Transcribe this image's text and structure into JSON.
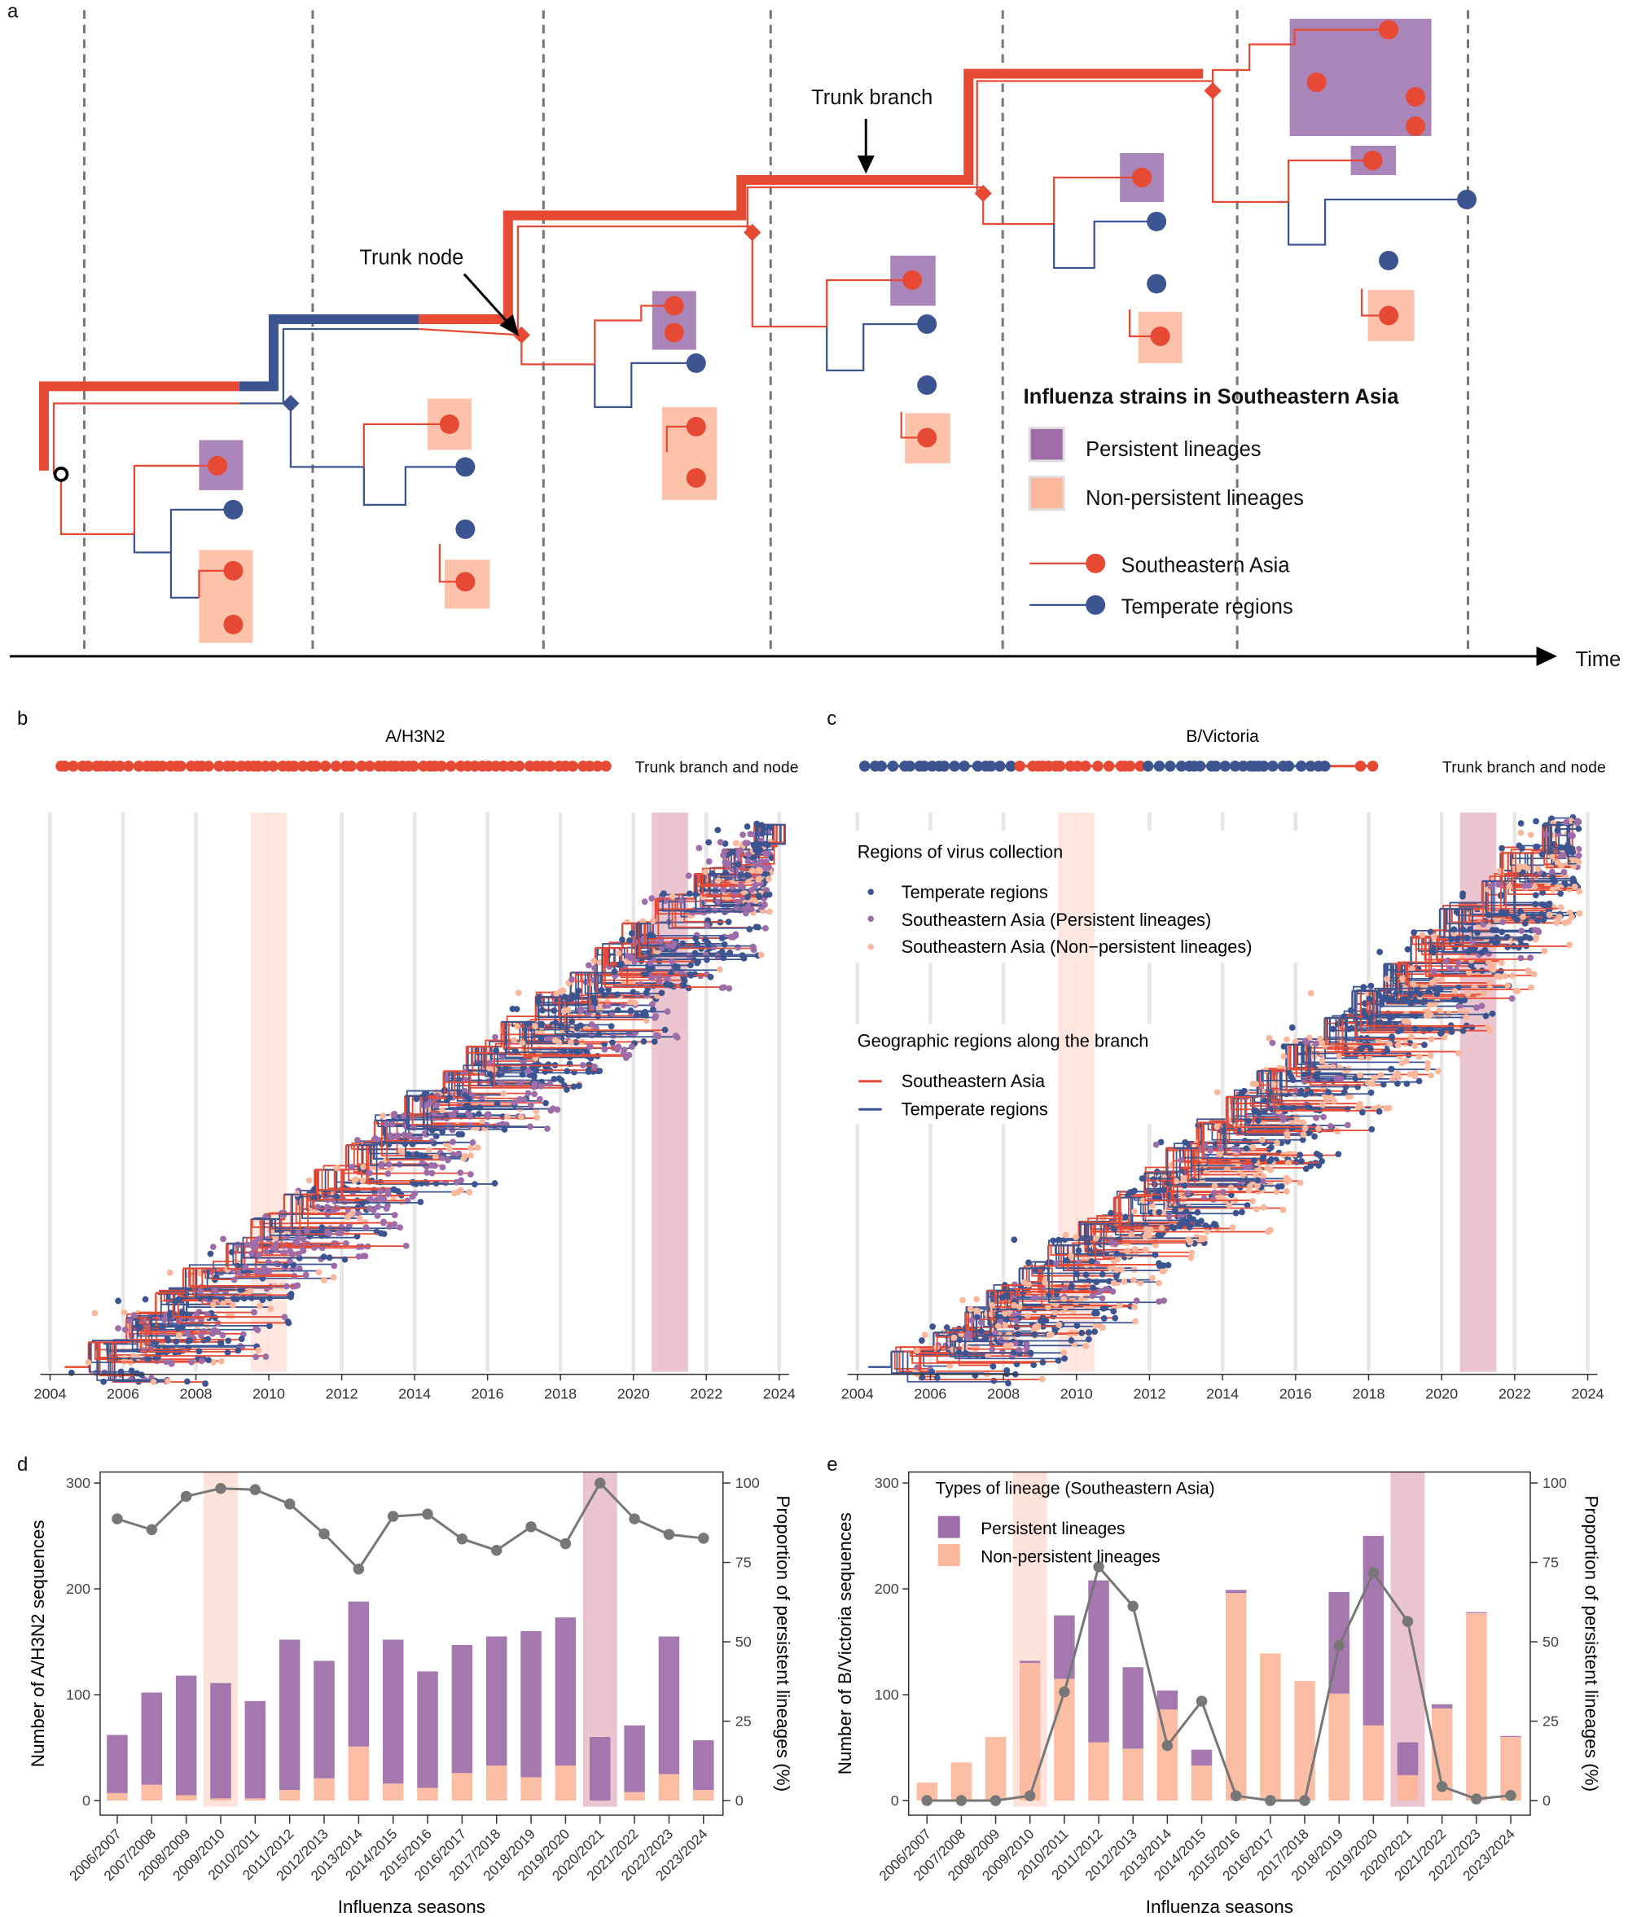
{
  "colors": {
    "sea_red": "#e64a35",
    "temperate_blue": "#3c5590",
    "persistent_purple": "#9d6ca9",
    "nonpersistent_peach": "#fbb79b",
    "band_2009": "#fde3da",
    "band_2020": "#eac4cf",
    "line_grey": "#777777"
  },
  "panel_a": {
    "letter": "a",
    "trunk_branch_label": "Trunk branch",
    "trunk_node_label": "Trunk node",
    "time_label": "Time",
    "legend": {
      "title": "Influenza strains in Southeastern Asia",
      "persistent": "Persistent lineages",
      "nonpersistent": "Non-persistent lineages",
      "sea": "Southeastern Asia",
      "temperate": "Temperate regions"
    }
  },
  "panel_b": {
    "letter": "b",
    "title": "A/H3N2",
    "strip_label": "Trunk branch and node",
    "x_ticks": [
      "2004",
      "2006",
      "2008",
      "2010",
      "2012",
      "2014",
      "2016",
      "2018",
      "2020",
      "2022",
      "2024"
    ]
  },
  "panel_c": {
    "letter": "c",
    "title": "B/Victoria",
    "strip_label": "Trunk branch and node",
    "x_ticks": [
      "2004",
      "2006",
      "2008",
      "2010",
      "2012",
      "2014",
      "2016",
      "2018",
      "2020",
      "2022",
      "2024"
    ],
    "legend": {
      "collection_title": "Regions of virus collection",
      "temperate": "Temperate regions",
      "sea_persistent": "Southeastern Asia (Persistent lineages)",
      "sea_nonpersistent": "Southeastern Asia (Non−persistent lineages)",
      "branch_title": "Geographic regions along the branch",
      "branch_sea": "Southeastern Asia",
      "branch_temperate": "Temperate regions"
    }
  },
  "chart_data": [
    {
      "panel": "d",
      "type": "bar",
      "stacked": true,
      "categories": [
        "2006/2007",
        "2007/2008",
        "2008/2009",
        "2009/2010",
        "2010/2011",
        "2011/2012",
        "2012/2013",
        "2013/2014",
        "2014/2015",
        "2015/2016",
        "2016/2017",
        "2017/2018",
        "2018/2019",
        "2019/2020",
        "2020/2021",
        "2021/2022",
        "2022/2023",
        "2023/2024"
      ],
      "series": [
        {
          "name": "Non-persistent lineages",
          "values": [
            7,
            15,
            5,
            2,
            2,
            10,
            21,
            51,
            16,
            12,
            26,
            33,
            22,
            33,
            0,
            8,
            25,
            10
          ]
        },
        {
          "name": "Persistent lineages",
          "values": [
            55,
            87,
            113,
            109,
            92,
            142,
            111,
            137,
            136,
            110,
            121,
            122,
            138,
            140,
            60,
            63,
            130,
            47
          ]
        }
      ],
      "line": {
        "axis": "right",
        "values": [
          88.7,
          85.3,
          95.8,
          98.3,
          97.9,
          93.4,
          84.0,
          72.9,
          89.5,
          90.2,
          82.4,
          78.8,
          86.2,
          80.9,
          100,
          88.7,
          83.8,
          82.6
        ]
      },
      "highlighted": [
        "2009/2010",
        "2020/2021"
      ],
      "xlabel": "Influenza seasons",
      "ylabel": "Number of A/H3N2 sequences",
      "y2label": "Proportion of persistent lineages (%)",
      "ylim": [
        0,
        300
      ],
      "y2lim": [
        0,
        100
      ],
      "yticks": [
        "0",
        "100",
        "200",
        "300"
      ],
      "y2ticks": [
        "0",
        "25",
        "50",
        "75",
        "100"
      ]
    },
    {
      "panel": "e",
      "type": "bar",
      "stacked": true,
      "categories": [
        "2006/2007",
        "2007/2008",
        "2008/2009",
        "2009/2010",
        "2010/2011",
        "2011/2012",
        "2012/2013",
        "2013/2014",
        "2014/2015",
        "2015/2016",
        "2016/2017",
        "2017/2018",
        "2018/2019",
        "2019/2020",
        "2020/2021",
        "2021/2022",
        "2022/2023",
        "2023/2024"
      ],
      "series": [
        {
          "name": "Non-persistent lineages",
          "values": [
            17,
            36,
            60,
            130,
            115,
            55,
            49,
            86,
            33,
            196,
            139,
            113,
            101,
            71,
            24,
            87,
            177,
            60
          ]
        },
        {
          "name": "Persistent lineages",
          "values": [
            0,
            0,
            0,
            2,
            60,
            153,
            77,
            18,
            15,
            3,
            0,
            0,
            96,
            179,
            31,
            4,
            1,
            1
          ]
        }
      ],
      "line": {
        "axis": "right",
        "values": [
          0,
          0,
          0,
          1.5,
          34.2,
          73.6,
          61.2,
          17.3,
          31.3,
          1.5,
          0,
          0,
          48.8,
          71.7,
          56.4,
          4.4,
          0.5,
          1.6
        ]
      },
      "highlighted": [
        "2009/2010",
        "2020/2021"
      ],
      "legend_title": "Types of lineage (Southeastern Asia)",
      "legend_placement": "top-left",
      "xlabel": "Influenza seasons",
      "ylabel": "Number of B/Victoria sequences",
      "y2label": "Proportion of persistent lineages (%)",
      "ylim": [
        0,
        300
      ],
      "y2lim": [
        0,
        100
      ],
      "yticks": [
        "0",
        "100",
        "200",
        "300"
      ],
      "y2ticks": [
        "0",
        "25",
        "50",
        "75",
        "100"
      ]
    }
  ]
}
